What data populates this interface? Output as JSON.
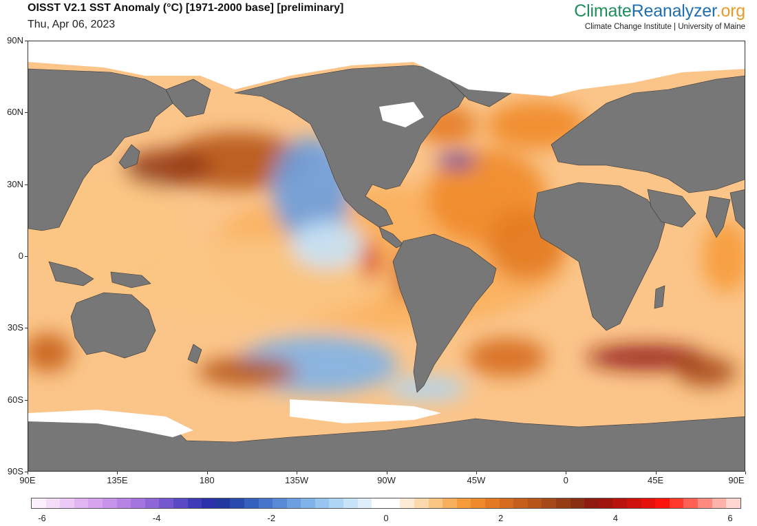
{
  "header": {
    "title": "OISST V2.1 SST Anomaly (°C) [1971-2000 base] [preliminary]",
    "date": "Thu, Apr 06, 2023",
    "brand_part1": "Climate",
    "brand_part2": "Reanalyzer",
    "brand_part3": ".org",
    "brand_subtitle": "Climate Change Institute | University of Maine",
    "brand_colors": {
      "climate": "#1e8e5a",
      "reanalyzer": "#1f6fb0",
      "org": "#e89a2b"
    }
  },
  "map": {
    "projection": "equirectangular",
    "lon_range": [
      90,
      450
    ],
    "lat_range": [
      -90,
      90
    ],
    "land_color": "#777777",
    "ice_color": "#ffffff",
    "lat_ticks": [
      {
        "value": 90,
        "label": "90N"
      },
      {
        "value": 60,
        "label": "60N"
      },
      {
        "value": 30,
        "label": "30N"
      },
      {
        "value": 0,
        "label": "0"
      },
      {
        "value": -30,
        "label": "30S"
      },
      {
        "value": -60,
        "label": "60S"
      },
      {
        "value": -90,
        "label": "90S"
      }
    ],
    "lon_ticks": [
      {
        "value": 90,
        "label": "90E"
      },
      {
        "value": 135,
        "label": "135E"
      },
      {
        "value": 180,
        "label": "180"
      },
      {
        "value": 225,
        "label": "135W"
      },
      {
        "value": 270,
        "label": "90W"
      },
      {
        "value": 315,
        "label": "45W"
      },
      {
        "value": 360,
        "label": "0"
      },
      {
        "value": 405,
        "label": "45E"
      },
      {
        "value": 450,
        "label": "90E"
      }
    ],
    "anomaly_regions": [
      {
        "lon": 270,
        "lat": 0,
        "rx": 90,
        "ry": 30,
        "value": 1.0
      },
      {
        "lon": 200,
        "lat": -10,
        "rx": 70,
        "ry": 18,
        "value": 0.9
      },
      {
        "lon": 130,
        "lat": 10,
        "rx": 40,
        "ry": 25,
        "value": 0.8
      },
      {
        "lon": 195,
        "lat": 40,
        "rx": 35,
        "ry": 12,
        "value": 2.6
      },
      {
        "lon": 160,
        "lat": 37,
        "rx": 22,
        "ry": 8,
        "value": 2.9
      },
      {
        "lon": 232,
        "lat": 28,
        "rx": 20,
        "ry": 22,
        "value": -1.5
      },
      {
        "lon": 240,
        "lat": 5,
        "rx": 18,
        "ry": 10,
        "value": -0.6
      },
      {
        "lon": 262,
        "lat": -2,
        "rx": 4,
        "ry": 8,
        "value": 4.2
      },
      {
        "lon": 278,
        "lat": -8,
        "rx": 3,
        "ry": 10,
        "value": 4.0
      },
      {
        "lon": 235,
        "lat": -45,
        "rx": 40,
        "ry": 12,
        "value": -1.3
      },
      {
        "lon": 200,
        "lat": -48,
        "rx": 25,
        "ry": 6,
        "value": 2.4
      },
      {
        "lon": 320,
        "lat": 25,
        "rx": 30,
        "ry": 20,
        "value": 1.6
      },
      {
        "lon": 340,
        "lat": 5,
        "rx": 20,
        "ry": 15,
        "value": 1.8
      },
      {
        "lon": 305,
        "lat": 40,
        "rx": 10,
        "ry": 3,
        "value": -3.0
      },
      {
        "lon": 300,
        "lat": 55,
        "rx": 15,
        "ry": 8,
        "value": 1.9
      },
      {
        "lon": 345,
        "lat": 55,
        "rx": 25,
        "ry": 10,
        "value": 1.5
      },
      {
        "lon": 400,
        "lat": -42,
        "rx": 30,
        "ry": 5,
        "value": 3.5
      },
      {
        "lon": 330,
        "lat": -42,
        "rx": 20,
        "ry": 8,
        "value": 2.0
      },
      {
        "lon": 430,
        "lat": -48,
        "rx": 15,
        "ry": 6,
        "value": 2.8
      },
      {
        "lon": 440,
        "lat": 0,
        "rx": 12,
        "ry": 15,
        "value": 1.3
      },
      {
        "lon": 100,
        "lat": -40,
        "rx": 12,
        "ry": 8,
        "value": 2.2
      },
      {
        "lon": 290,
        "lat": -55,
        "rx": 20,
        "ry": 5,
        "value": -0.8
      }
    ]
  },
  "colorbar": {
    "min": -6,
    "max": 6,
    "colors": [
      "#fdf0fd",
      "#f5dcf9",
      "#ecc9f6",
      "#e1b4f2",
      "#d6a3ef",
      "#c893eb",
      "#b783e5",
      "#a474df",
      "#8f66d8",
      "#7558cf",
      "#5a49c4",
      "#3f3bb6",
      "#2a31a8",
      "#23389f",
      "#2a4aad",
      "#3660bd",
      "#4675cb",
      "#588ad6",
      "#6b9fe0",
      "#80b3e8",
      "#97c5ef",
      "#aed5f4",
      "#c6e3f8",
      "#deeffb",
      "#ffffff",
      "#ffffff",
      "#fdebd6",
      "#fcd9ac",
      "#fbc583",
      "#f9b05c",
      "#f69b3a",
      "#ef8a2a",
      "#e37a22",
      "#d56c1e",
      "#c65f1b",
      "#b65419",
      "#a64817",
      "#963d15",
      "#8a2f12",
      "#8f1a10",
      "#a0150e",
      "#b8130d",
      "#cf120c",
      "#e6110b",
      "#fa140c",
      "#ff3a2a",
      "#ff6155",
      "#ff8a80",
      "#ffb2aa",
      "#ffd6d2"
    ],
    "tick_labels": [
      {
        "value": -6,
        "label": "-6"
      },
      {
        "value": -4,
        "label": "-4"
      },
      {
        "value": -2,
        "label": "-2"
      },
      {
        "value": 0,
        "label": "0"
      },
      {
        "value": 2,
        "label": "2"
      },
      {
        "value": 4,
        "label": "4"
      },
      {
        "value": 6,
        "label": "6"
      }
    ]
  }
}
